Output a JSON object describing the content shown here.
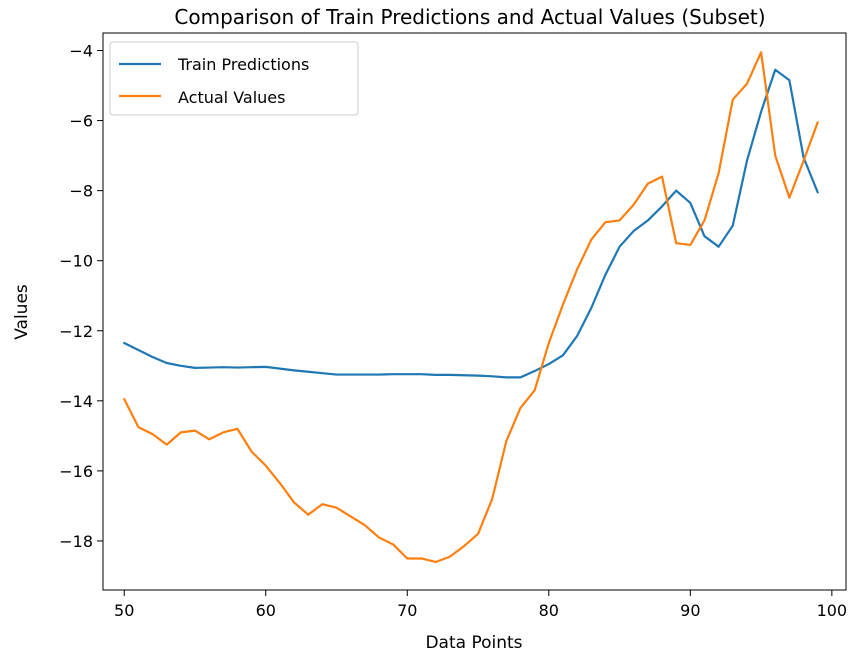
{
  "chart_data": {
    "type": "line",
    "title": "Comparison of Train Predictions and Actual Values (Subset)",
    "xlabel": "Data Points",
    "ylabel": "Values",
    "xlim": [
      48.5,
      101.0
    ],
    "ylim": [
      -19.4,
      -3.5
    ],
    "xticks": [
      50,
      60,
      70,
      80,
      90,
      100
    ],
    "yticks": [
      -18,
      -16,
      -14,
      -12,
      -10,
      -8,
      -6,
      -4
    ],
    "grid": false,
    "legend_position": "top-left",
    "x": [
      50,
      51,
      52,
      53,
      54,
      55,
      56,
      57,
      58,
      59,
      60,
      61,
      62,
      63,
      64,
      65,
      66,
      67,
      68,
      69,
      70,
      71,
      72,
      73,
      74,
      75,
      76,
      77,
      78,
      79,
      80,
      81,
      82,
      83,
      84,
      85,
      86,
      87,
      88,
      89,
      90,
      91,
      92,
      93,
      94,
      95,
      96,
      97,
      98,
      99
    ],
    "series": [
      {
        "name": "Train Predictions",
        "color": "#1f77b4",
        "values": [
          -12.35,
          -12.55,
          -12.75,
          -12.92,
          -13.0,
          -13.06,
          -13.05,
          -13.04,
          -13.05,
          -13.04,
          -13.03,
          -13.08,
          -13.13,
          -13.17,
          -13.21,
          -13.25,
          -13.25,
          -13.25,
          -13.25,
          -13.24,
          -13.24,
          -13.24,
          -13.26,
          -13.26,
          -13.27,
          -13.28,
          -13.3,
          -13.33,
          -13.33,
          -13.15,
          -12.95,
          -12.7,
          -12.15,
          -11.35,
          -10.4,
          -9.6,
          -9.15,
          -8.85,
          -8.45,
          -8.0,
          -8.35,
          -9.3,
          -9.6,
          -9.0,
          -7.15,
          -5.75,
          -4.55,
          -4.85,
          -7.05,
          -8.05
        ]
      },
      {
        "name": "Actual Values",
        "color": "#ff7f0e",
        "values": [
          -13.95,
          -14.75,
          -14.95,
          -15.25,
          -14.9,
          -14.85,
          -15.1,
          -14.9,
          -14.8,
          -15.45,
          -15.85,
          -16.35,
          -16.9,
          -17.25,
          -16.95,
          -17.05,
          -17.3,
          -17.55,
          -17.9,
          -18.1,
          -18.5,
          -18.5,
          -18.6,
          -18.45,
          -18.15,
          -17.8,
          -16.8,
          -15.15,
          -14.2,
          -13.7,
          -12.35,
          -11.25,
          -10.25,
          -9.4,
          -8.9,
          -8.85,
          -8.4,
          -7.8,
          -7.6,
          -9.5,
          -9.55,
          -8.85,
          -7.5,
          -5.4,
          -4.95,
          -4.05,
          -7.0,
          -8.2,
          -7.15,
          -6.05
        ]
      }
    ]
  }
}
